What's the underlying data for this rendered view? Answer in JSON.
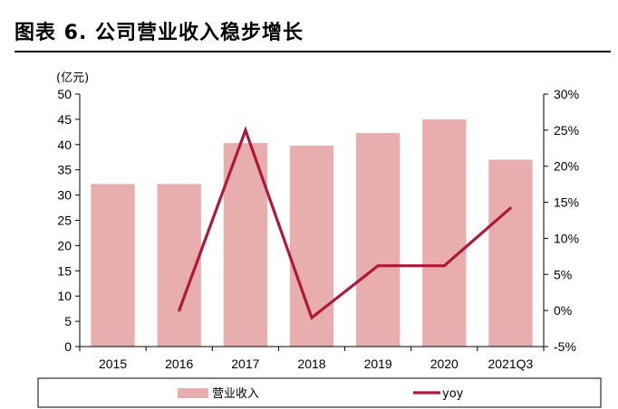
{
  "figure": {
    "title": "图表 6. 公司营业收入稳步增长"
  },
  "chart_data": {
    "type": "bar",
    "categories": [
      "2015",
      "2016",
      "2017",
      "2018",
      "2019",
      "2020",
      "2021Q3"
    ],
    "series": [
      {
        "name": "营业收入",
        "type": "bar",
        "axis": "left",
        "color": "#e8adad",
        "values": [
          32.2,
          32.2,
          40.3,
          39.8,
          42.3,
          45.0,
          37.0
        ]
      },
      {
        "name": "yoy",
        "type": "line",
        "axis": "right",
        "color": "#b0183a",
        "values": [
          null,
          0.0,
          25.0,
          -1.0,
          6.2,
          6.2,
          14.2
        ]
      }
    ],
    "y_left": {
      "unit_label": "(亿元)",
      "min": 0,
      "max": 50,
      "step": 5,
      "tick_labels": [
        "0",
        "5",
        "10",
        "15",
        "20",
        "25",
        "30",
        "35",
        "40",
        "45",
        "50"
      ]
    },
    "y_right": {
      "min": -5,
      "max": 30,
      "step": 5,
      "tick_labels": [
        "-5%",
        "0%",
        "5%",
        "10%",
        "15%",
        "20%",
        "25%",
        "30%"
      ]
    },
    "grid": false,
    "legend_position": "bottom"
  }
}
